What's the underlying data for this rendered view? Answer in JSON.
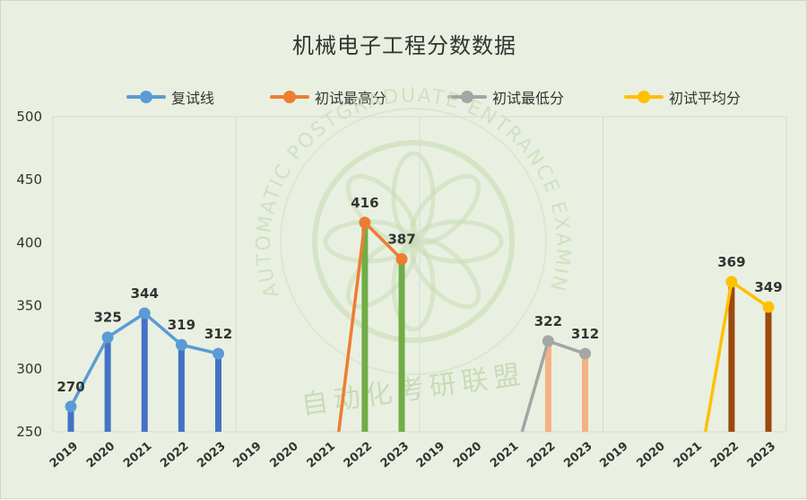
{
  "chart_data": {
    "type": "line",
    "title": "机械电子工程分数数据",
    "xlabel": "",
    "ylabel": "",
    "ylim": [
      250,
      500
    ],
    "yticks": [
      "500",
      "450",
      "400",
      "350",
      "300",
      "250"
    ],
    "categories": [
      "2019",
      "2020",
      "2021",
      "2022",
      "2023"
    ],
    "grid": false,
    "legend_position": "top",
    "series": [
      {
        "name": "复试线",
        "color": "#5b9bd5",
        "bar_color": "#4472c4",
        "values": [
          270,
          325,
          344,
          319,
          312
        ],
        "labels": [
          "270",
          "325",
          "344",
          "319",
          "312"
        ]
      },
      {
        "name": "初试最高分",
        "color": "#ed7d31",
        "bar_color": "#70ad47",
        "values": [
          null,
          null,
          null,
          416,
          387
        ],
        "labels": [
          "",
          "",
          "",
          "416",
          "387"
        ]
      },
      {
        "name": "初试最低分",
        "color": "#a5a5a5",
        "bar_color": "#f4b183",
        "values": [
          null,
          null,
          null,
          322,
          312
        ],
        "labels": [
          "",
          "",
          "",
          "322",
          "312"
        ]
      },
      {
        "name": "初试平均分",
        "color": "#ffc000",
        "bar_color": "#9e480e",
        "values": [
          null,
          null,
          null,
          369,
          349
        ],
        "labels": [
          "",
          "",
          "",
          "369",
          "349"
        ]
      }
    ]
  },
  "watermark": {
    "text": "AUTOMATIC POSTGRADUATE ENTRANCE EXAMINATION ALLIANCE",
    "chinese": "自动化考研联盟"
  }
}
